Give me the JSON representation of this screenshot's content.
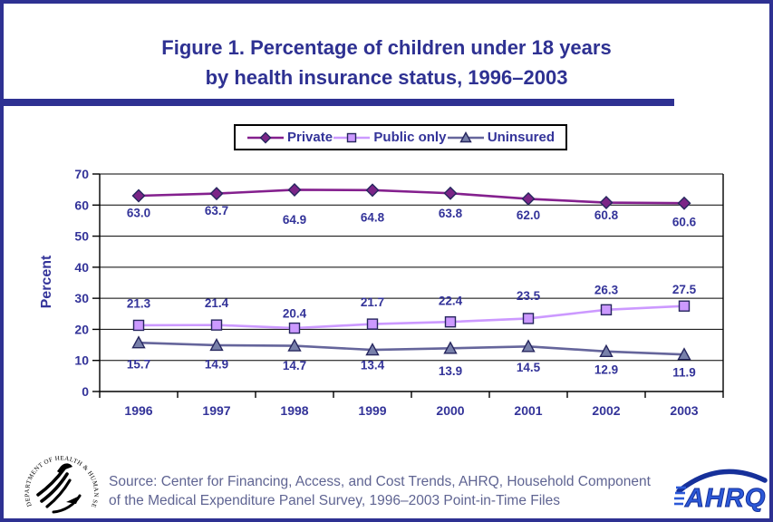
{
  "title": {
    "line1": "Figure 1. Percentage of children under 18 years",
    "line2": "by health insurance status, 1996–2003"
  },
  "chart_data": {
    "type": "line",
    "title": "Figure 1. Percentage of children under 18 years by health insurance status, 1996–2003",
    "categories": [
      "1996",
      "1997",
      "1998",
      "1999",
      "2000",
      "2001",
      "2002",
      "2003"
    ],
    "series": [
      {
        "name": "Private",
        "values": [
          63.0,
          63.7,
          64.9,
          64.8,
          63.8,
          62.0,
          60.8,
          60.6
        ],
        "color": "#84208E",
        "marker": "diamond",
        "marker_fill": "#7B2587"
      },
      {
        "name": "Public only",
        "values": [
          21.3,
          21.4,
          20.4,
          21.7,
          22.4,
          23.5,
          26.3,
          27.5
        ],
        "color": "#CC99FF",
        "marker": "square",
        "marker_fill": "#CC99FF"
      },
      {
        "name": "Uninsured",
        "values": [
          15.7,
          14.9,
          14.7,
          13.4,
          13.9,
          14.5,
          12.9,
          11.9
        ],
        "color": "#65659B",
        "marker": "triangle",
        "marker_fill": "#7880AA"
      }
    ],
    "xlabel": "",
    "ylabel": "Percent",
    "ylim": [
      0,
      70
    ],
    "y_ticks": [
      0,
      10,
      20,
      30,
      40,
      50,
      60,
      70
    ],
    "grid": true,
    "legend_position": "top",
    "marker_outline": "#26265E",
    "grid_color": "#000000",
    "label_color": "#333399"
  },
  "footer": {
    "source": "Source: Center for Financing, Access, and Cost Trends, AHRQ, Household Component of the Medical Expenditure Panel Survey, 1996–2003 Point-in-Time Files",
    "hhs_logo_text": "DEPARTMENT OF HEALTH & HUMAN SERVICES · USA",
    "ahrq_logo_text": "AHRQ"
  },
  "colors": {
    "frame_border": "#2E3192",
    "title_text": "#2E3192",
    "axis_text": "#333399",
    "source_text": "#5F6492",
    "ahrq_blue": "#2C59D8",
    "ahrq_dark_blue": "#16309A"
  }
}
